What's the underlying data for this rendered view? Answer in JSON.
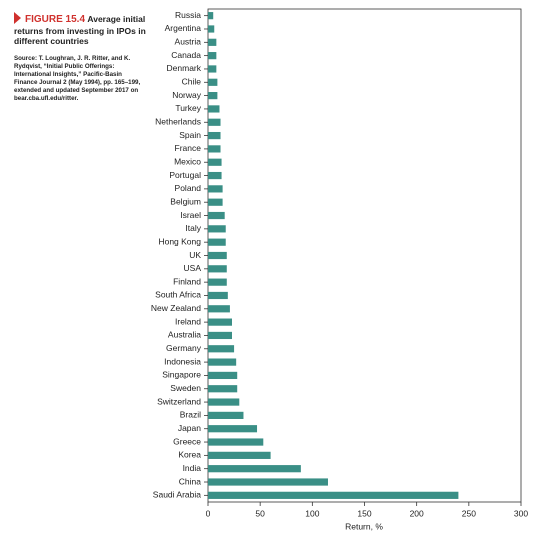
{
  "chart_data": {
    "type": "barh",
    "figure_label": "FIGURE 15.4",
    "title": "Average initial returns from investing in IPOs in different countries",
    "source": "Source: T. Loughran, J. R. Ritter, and K. Rydqvist, “Initial Public Offerings: International Insights,” Pacific-Basin Finance Journal 2 (May 1994), pp. 165–199, extended and updated September 2017 on bear.cba.ufl.edu/ritter.",
    "xlabel": "Return, %",
    "categories": [
      "Russia",
      "Argentina",
      "Austria",
      "Canada",
      "Denmark",
      "Chile",
      "Norway",
      "Turkey",
      "Netherlands",
      "Spain",
      "France",
      "Mexico",
      "Portugal",
      "Poland",
      "Belgium",
      "Israel",
      "Italy",
      "Hong Kong",
      "UK",
      "USA",
      "Finland",
      "South Africa",
      "New Zealand",
      "Ireland",
      "Australia",
      "Germany",
      "Indonesia",
      "Singapore",
      "Sweden",
      "Switzerland",
      "Brazil",
      "Japan",
      "Greece",
      "Korea",
      "India",
      "China",
      "Saudi Arabia"
    ],
    "values": [
      5,
      6,
      8,
      8,
      8,
      9,
      9,
      11,
      12,
      12,
      12,
      13,
      13,
      14,
      14,
      16,
      17,
      17,
      18,
      18,
      18,
      19,
      21,
      23,
      23,
      25,
      27,
      28,
      28,
      30,
      34,
      47,
      53,
      60,
      89,
      115,
      240
    ],
    "color": "#3a8f86",
    "xlim": [
      0,
      300
    ],
    "xticks": [
      0,
      50,
      100,
      150,
      200,
      250,
      300
    ]
  }
}
